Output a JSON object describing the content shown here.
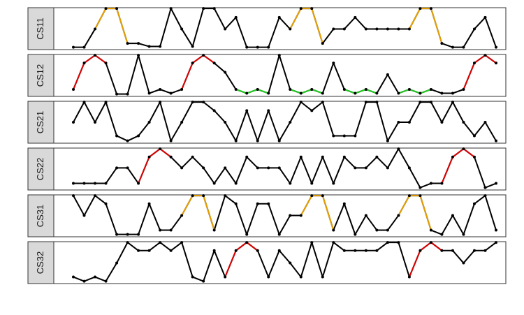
{
  "chart_data": [
    {
      "type": "line",
      "label": "CS11",
      "color": "#000000",
      "ylim": [
        -0.6,
        10.2
      ],
      "values": [
        0,
        0,
        4.7,
        10,
        10,
        1,
        1,
        0.2,
        0.2,
        10,
        4.7,
        0.2,
        10,
        10,
        4.7,
        7.7,
        0,
        0,
        0,
        7.7,
        4.7,
        10,
        10,
        1,
        4.7,
        4.7,
        7.7,
        4.7,
        4.7,
        4.7,
        4.7,
        4.7,
        10,
        10,
        1,
        0,
        0,
        4.7,
        7.7,
        0
      ],
      "highlights": [
        {
          "from": 2,
          "to": 5,
          "color": "#e69f00"
        },
        {
          "from": 20,
          "to": 23,
          "color": "#e69f00"
        },
        {
          "from": 31,
          "to": 34,
          "color": "#e69f00"
        }
      ]
    },
    {
      "type": "line",
      "label": "CS12",
      "color": "#000000",
      "ylim": [
        -0.6,
        10.2
      ],
      "values": [
        1.2,
        8,
        10,
        8,
        0,
        0,
        10,
        0.2,
        1.2,
        0.2,
        1.2,
        8,
        10,
        8,
        5.6,
        1.2,
        0.2,
        1.2,
        0.2,
        10,
        1.2,
        0.2,
        1.2,
        0.2,
        8,
        1.2,
        0.2,
        1.2,
        0.2,
        5,
        0.2,
        1.2,
        0.2,
        1.2,
        0.2,
        0.2,
        1.2,
        8,
        10,
        8
      ],
      "highlights": [
        {
          "from": 0,
          "to": 3,
          "color": "#dd0000"
        },
        {
          "from": 10,
          "to": 13,
          "color": "#dd0000"
        },
        {
          "from": 36,
          "to": 39,
          "color": "#dd0000"
        },
        {
          "from": 15,
          "to": 18,
          "color": "#22cc22"
        },
        {
          "from": 20,
          "to": 23,
          "color": "#22cc22"
        },
        {
          "from": 25,
          "to": 28,
          "color": "#22cc22"
        },
        {
          "from": 30,
          "to": 33,
          "color": "#22cc22"
        }
      ]
    },
    {
      "type": "line",
      "label": "CS21",
      "color": "#000000",
      "ylim": [
        -0.6,
        10.2
      ],
      "values": [
        4.8,
        10,
        4.8,
        10,
        1.3,
        0,
        1.3,
        4.8,
        10,
        0,
        4.8,
        10,
        10,
        7.8,
        4.8,
        0,
        7.8,
        0,
        7.8,
        0,
        4.8,
        10,
        7.8,
        10,
        1.3,
        1.3,
        1.3,
        10,
        10,
        0,
        4.8,
        4.8,
        10,
        10,
        4.8,
        10,
        4.8,
        1.3,
        4.8,
        0
      ],
      "highlights": []
    },
    {
      "type": "line",
      "label": "CS22",
      "color": "#000000",
      "ylim": [
        -0.6,
        10.2
      ],
      "values": [
        1.1,
        1.1,
        1.1,
        1.1,
        5.1,
        5.1,
        1.1,
        7.9,
        10,
        7.9,
        5.1,
        7.9,
        5.1,
        1.1,
        5.1,
        1.1,
        7.9,
        5.1,
        5.1,
        5.1,
        1.1,
        7.9,
        1.1,
        7.9,
        1.1,
        7.9,
        5.1,
        5.1,
        7.9,
        5.1,
        10,
        5.1,
        0,
        1.1,
        1.1,
        7.9,
        10,
        7.9,
        0,
        1.1
      ],
      "highlights": [
        {
          "from": 6,
          "to": 9,
          "color": "#dd0000"
        },
        {
          "from": 34,
          "to": 37,
          "color": "#dd0000"
        }
      ]
    },
    {
      "type": "line",
      "label": "CS31",
      "color": "#000000",
      "ylim": [
        -0.6,
        10.2
      ],
      "values": [
        10,
        4.9,
        10,
        7.9,
        0,
        0,
        0,
        7.9,
        1.1,
        1.1,
        4.9,
        10,
        10,
        1.1,
        10,
        7.9,
        0,
        7.9,
        7.9,
        0,
        4.9,
        4.9,
        10,
        10,
        1.1,
        7.9,
        0,
        4.9,
        1.1,
        1.1,
        4.9,
        10,
        10,
        1.1,
        0,
        4.9,
        0,
        7.9,
        10,
        1.1
      ],
      "highlights": [
        {
          "from": 10,
          "to": 13,
          "color": "#e69f00"
        },
        {
          "from": 21,
          "to": 24,
          "color": "#e69f00"
        },
        {
          "from": 30,
          "to": 33,
          "color": "#e69f00"
        }
      ]
    },
    {
      "type": "line",
      "label": "CS32",
      "color": "#000000",
      "ylim": [
        -0.6,
        10.2
      ],
      "values": [
        1.1,
        0,
        1.1,
        0,
        4.7,
        10,
        7.9,
        7.9,
        10,
        7.9,
        10,
        1.1,
        0,
        7.9,
        1.1,
        7.9,
        10,
        7.9,
        1.1,
        7.9,
        4.7,
        1.1,
        10,
        1.1,
        10,
        7.9,
        7.9,
        7.9,
        7.9,
        10,
        10,
        1.1,
        7.9,
        10,
        7.9,
        7.9,
        4.7,
        7.9,
        7.9,
        10
      ],
      "highlights": [
        {
          "from": 14,
          "to": 17,
          "color": "#dd0000"
        },
        {
          "from": 31,
          "to": 34,
          "color": "#dd0000"
        }
      ]
    }
  ]
}
